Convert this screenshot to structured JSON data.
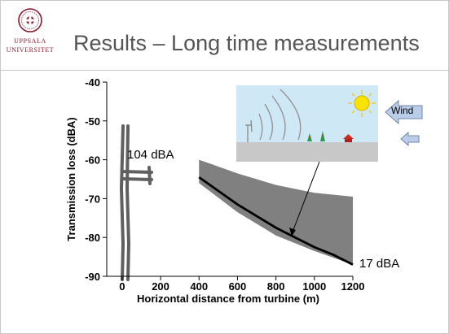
{
  "header": {
    "logo_line1": "UPPSALA",
    "logo_line2": "UNIVERSITET",
    "title": "Results – Long time measurements"
  },
  "chart_data": {
    "type": "line",
    "xlabel": "Horizontal distance from turbine (m)",
    "ylabel": "Transmission loss (dBA)",
    "xlim": [
      -80,
      1200
    ],
    "ylim": [
      -90,
      -40
    ],
    "xticks": [
      0,
      200,
      400,
      600,
      800,
      1000,
      1200
    ],
    "yticks": [
      -40,
      -50,
      -60,
      -70,
      -80,
      -90
    ],
    "band": {
      "x": [
        400,
        600,
        800,
        1000,
        1200
      ],
      "upper": [
        -60,
        -63.5,
        -66.5,
        -68.5,
        -69.5
      ],
      "lower": [
        -66,
        -73.5,
        -79.5,
        -83.5,
        -87
      ]
    },
    "series": [
      {
        "x": [
          400,
          500,
          600,
          700,
          800,
          900,
          1000,
          1100,
          1200
        ],
        "y": [
          -64.5,
          -68,
          -71.5,
          -74.5,
          -77.5,
          -80,
          -82.5,
          -84.5,
          -87
        ]
      }
    ],
    "annotations": [
      {
        "text": "104 dBA",
        "x": 20,
        "y": -58
      },
      {
        "text": "17 dBA",
        "x": 1230,
        "y": -87.5
      },
      {
        "text": "Wind"
      }
    ],
    "grid": false,
    "colors": {
      "band": "#808080",
      "line": "#000000",
      "turbine": "#606060",
      "sky": "#cfe8f6",
      "ground": "#c8c8c8",
      "sun": "#f7e200",
      "wind_arrow": "#b9cde8"
    }
  }
}
